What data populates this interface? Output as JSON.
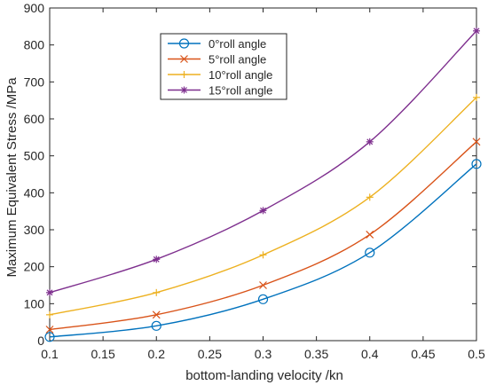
{
  "chart_data": {
    "type": "line",
    "title": "",
    "xlabel": "bottom-landing velocity /kn",
    "ylabel": "Maximum Equivalent Stress /MPa",
    "xlim": [
      0.1,
      0.5
    ],
    "ylim": [
      0,
      900
    ],
    "xticks": [
      0.1,
      0.15,
      0.2,
      0.25,
      0.3,
      0.35,
      0.4,
      0.45,
      0.5
    ],
    "xtick_labels": [
      "0.1",
      "0.15",
      "0.2",
      "0.25",
      "0.3",
      "0.35",
      "0.4",
      "0.45",
      "0.5"
    ],
    "yticks": [
      0,
      100,
      200,
      300,
      400,
      500,
      600,
      700,
      800,
      900
    ],
    "ytick_labels": [
      "0",
      "100",
      "200",
      "300",
      "400",
      "500",
      "600",
      "700",
      "800",
      "900"
    ],
    "grid": false,
    "legend_position": "top-center",
    "x": [
      0.1,
      0.2,
      0.3,
      0.4,
      0.5
    ],
    "series": [
      {
        "name": "0°roll angle",
        "marker": "circle",
        "color": "#0072BD",
        "values": [
          10,
          40,
          112,
          238,
          478
        ]
      },
      {
        "name": "5°roll angle",
        "marker": "x",
        "color": "#D95319",
        "values": [
          30,
          70,
          150,
          287,
          538
        ]
      },
      {
        "name": "10°roll angle",
        "marker": "plus",
        "color": "#EDB120",
        "values": [
          70,
          130,
          232,
          388,
          658
        ]
      },
      {
        "name": "15°roll angle",
        "marker": "star",
        "color": "#7E2F8E",
        "values": [
          130,
          220,
          352,
          538,
          838
        ]
      }
    ]
  }
}
